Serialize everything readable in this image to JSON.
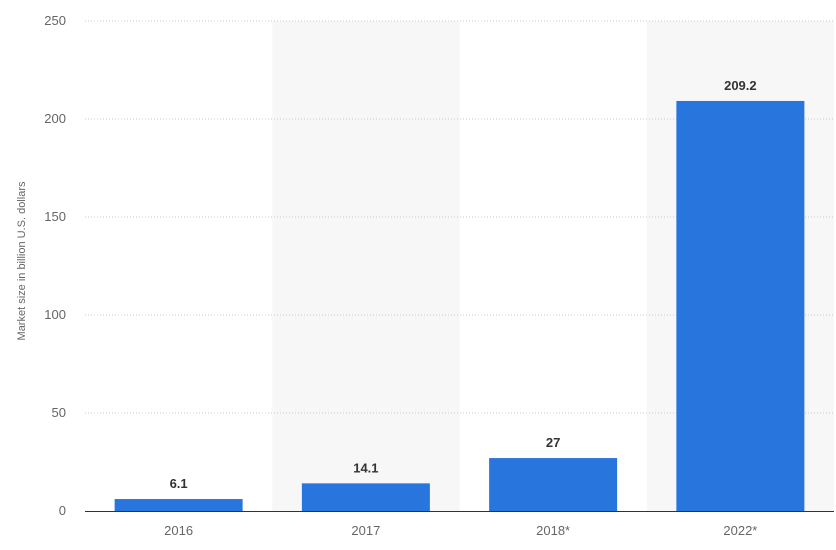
{
  "chart_data": {
    "type": "bar",
    "categories": [
      "2016",
      "2017",
      "2018*",
      "2022*"
    ],
    "values": [
      6.1,
      14.1,
      27,
      209.2
    ],
    "data_labels": [
      "6.1",
      "14.1",
      "27",
      "209.2"
    ],
    "title": "",
    "xlabel": "",
    "ylabel": "Market size in billion U.S. dollars",
    "ylim": [
      0,
      250
    ],
    "yticks": [
      0,
      50,
      100,
      150,
      200,
      250
    ],
    "ytick_labels": [
      "0",
      "50",
      "100",
      "150",
      "200",
      "250"
    ],
    "grid": true,
    "bar_color": "#2876dd",
    "band_color": "#f7f7f7",
    "grid_color": "#c8c8c8",
    "axis_color": "#333333"
  }
}
